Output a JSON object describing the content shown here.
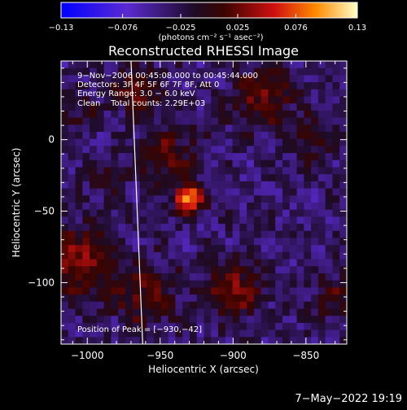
{
  "chart_data": {
    "type": "heatmap",
    "title": "Reconstructed RHESSI Image",
    "xlabel": "Heliocentric X (arcsec)",
    "ylabel": "Heliocentric Y (arcsec)",
    "xlim": [
      -1018,
      -822
    ],
    "ylim": [
      -143,
      55
    ],
    "x_ticks": [
      -1000,
      -950,
      -900,
      -850
    ],
    "x_tick_labels": [
      "−1000",
      "−950",
      "−900",
      "−850"
    ],
    "y_ticks": [
      0,
      -50,
      -100
    ],
    "y_tick_labels": [
      "0",
      "−50",
      "−100"
    ],
    "colorbar": {
      "min": -0.13,
      "max": 0.13,
      "ticks": [
        -0.13,
        -0.076,
        -0.025,
        0.025,
        0.076,
        0.13
      ],
      "tick_labels": [
        "−0.13",
        "−0.076",
        "−0.025",
        "0.025",
        "0.076",
        "0.13"
      ],
      "unit_label": "(photons cm⁻² s⁻¹ asec⁻²)"
    },
    "annotations": [
      "9−Nov−2006 00:45:08.000 to 00:45:44.000",
      "Detectors: 3F 4F 5F 6F 7F 8F, Att 0",
      "Energy Range: 3.0 − 6.0 keV",
      "Clean    Total counts: 2.29E+03"
    ],
    "peak_label": "Position of Peak = [−930,−42]",
    "peak": {
      "x": -930,
      "y": -42,
      "value": 0.13
    },
    "sources": [
      {
        "x": -930,
        "y": -42,
        "amp": 1.0,
        "sigma": 7
      },
      {
        "x": -900,
        "y": -105,
        "amp": 0.5,
        "sigma": 14
      },
      {
        "x": -960,
        "y": -110,
        "amp": 0.45,
        "sigma": 14
      },
      {
        "x": -1005,
        "y": -85,
        "amp": 0.5,
        "sigma": 18
      },
      {
        "x": -945,
        "y": -10,
        "amp": 0.35,
        "sigma": 15
      },
      {
        "x": -880,
        "y": 30,
        "amp": 0.45,
        "sigma": 15
      },
      {
        "x": -845,
        "y": 0,
        "amp": 0.3,
        "sigma": 12
      },
      {
        "x": -965,
        "y": 35,
        "amp": 0.4,
        "sigma": 12
      },
      {
        "x": -1010,
        "y": 20,
        "amp": 0.25,
        "sigma": 10
      },
      {
        "x": -830,
        "y": -110,
        "amp": 0.3,
        "sigma": 12
      },
      {
        "x": -990,
        "y": -25,
        "amp": 0.2,
        "sigma": 10
      }
    ],
    "limb_line": [
      {
        "x": -970,
        "y": 55
      },
      {
        "x": -962,
        "y": -143
      }
    ]
  },
  "timestamp": "7−May−2022 19:19"
}
